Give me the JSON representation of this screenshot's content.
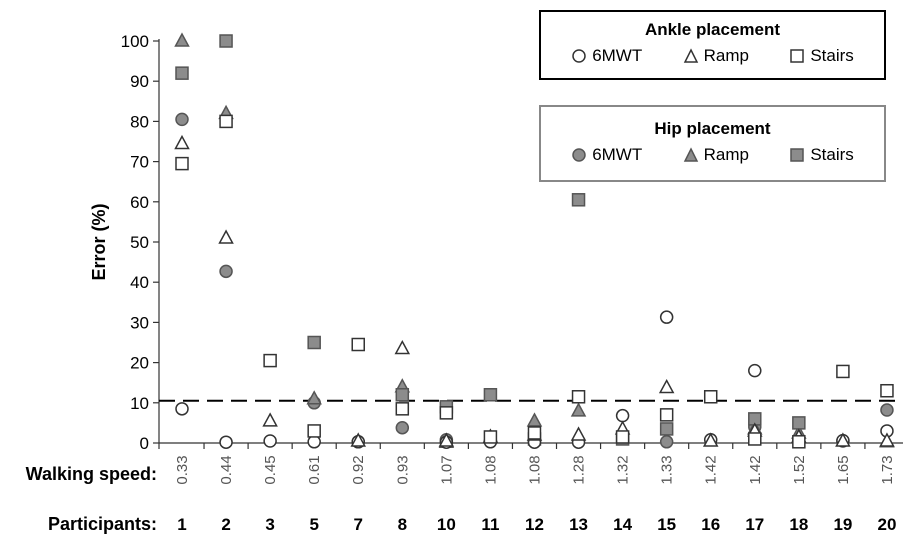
{
  "chart_data": {
    "type": "scatter",
    "ylabel": "Error (%)",
    "ylim": [
      0,
      100
    ],
    "yticks": [
      0,
      10,
      20,
      30,
      40,
      50,
      60,
      70,
      80,
      90,
      100
    ],
    "threshold": 10.5,
    "row_labels": {
      "speed": "Walking speed:",
      "participants": "Participants:"
    },
    "categories": [
      {
        "participant": "1",
        "speed": "0.33"
      },
      {
        "participant": "2",
        "speed": "0.44"
      },
      {
        "participant": "3",
        "speed": "0.45"
      },
      {
        "participant": "5",
        "speed": "0.61"
      },
      {
        "participant": "7",
        "speed": "0.92"
      },
      {
        "participant": "8",
        "speed": "0.93"
      },
      {
        "participant": "10",
        "speed": "1.07"
      },
      {
        "participant": "11",
        "speed": "1.08"
      },
      {
        "participant": "12",
        "speed": "1.08"
      },
      {
        "participant": "13",
        "speed": "1.28"
      },
      {
        "participant": "14",
        "speed": "1.32"
      },
      {
        "participant": "15",
        "speed": "1.33"
      },
      {
        "participant": "16",
        "speed": "1.42"
      },
      {
        "participant": "17",
        "speed": "1.42"
      },
      {
        "participant": "18",
        "speed": "1.52"
      },
      {
        "participant": "19",
        "speed": "1.65"
      },
      {
        "participant": "20",
        "speed": "1.73"
      }
    ],
    "legend_groups": [
      {
        "title": "Ankle placement",
        "items": [
          "6MWT",
          "Ramp",
          "Stairs"
        ]
      },
      {
        "title": "Hip placement",
        "items": [
          "6MWT",
          "Ramp",
          "Stairs"
        ]
      }
    ],
    "series": [
      {
        "name": "6MWT",
        "group": "Ankle placement",
        "marker": "circle",
        "fill": "#ffffff",
        "values": [
          8.5,
          0.2,
          0.5,
          0.3,
          0.3,
          null,
          0.2,
          0.3,
          0.2,
          0.2,
          6.8,
          31.3,
          0.8,
          18.0,
          0.5,
          0.6,
          3.0
        ]
      },
      {
        "name": "Ramp",
        "group": "Ankle placement",
        "marker": "triangle",
        "fill": "#ffffff",
        "values": [
          74.5,
          51.0,
          5.5,
          null,
          0.5,
          23.5,
          0.5,
          1.5,
          2.0,
          2.0,
          3.5,
          13.8,
          0.5,
          3.0,
          1.5,
          0.5,
          0.5
        ]
      },
      {
        "name": "Stairs",
        "group": "Ankle placement",
        "marker": "square",
        "fill": "#ffffff",
        "values": [
          69.5,
          80.0,
          20.5,
          3.0,
          24.5,
          8.5,
          7.5,
          1.5,
          2.5,
          11.5,
          1.5,
          7.0,
          11.5,
          1.0,
          0.3,
          17.8,
          13.0
        ]
      },
      {
        "name": "6MWT",
        "group": "Hip placement",
        "marker": "circle",
        "fill": "#8c8c8c",
        "values": [
          80.5,
          42.7,
          null,
          10.0,
          0.3,
          3.8,
          0.8,
          0.5,
          0.5,
          null,
          null,
          0.3,
          null,
          4.0,
          1.0,
          0.5,
          8.2
        ]
      },
      {
        "name": "Ramp",
        "group": "Hip placement",
        "marker": "triangle",
        "fill": "#8c8c8c",
        "values": [
          100.0,
          82.0,
          null,
          11.0,
          null,
          14.0,
          0.2,
          null,
          5.5,
          8.0,
          null,
          null,
          null,
          3.5,
          2.5,
          null,
          0.3
        ]
      },
      {
        "name": "Stairs",
        "group": "Hip placement",
        "marker": "square",
        "fill": "#8c8c8c",
        "values": [
          92.0,
          100.0,
          null,
          25.0,
          null,
          12.0,
          9.0,
          12.0,
          1.0,
          60.5,
          1.0,
          3.5,
          null,
          6.0,
          5.0,
          null,
          null
        ]
      }
    ]
  }
}
